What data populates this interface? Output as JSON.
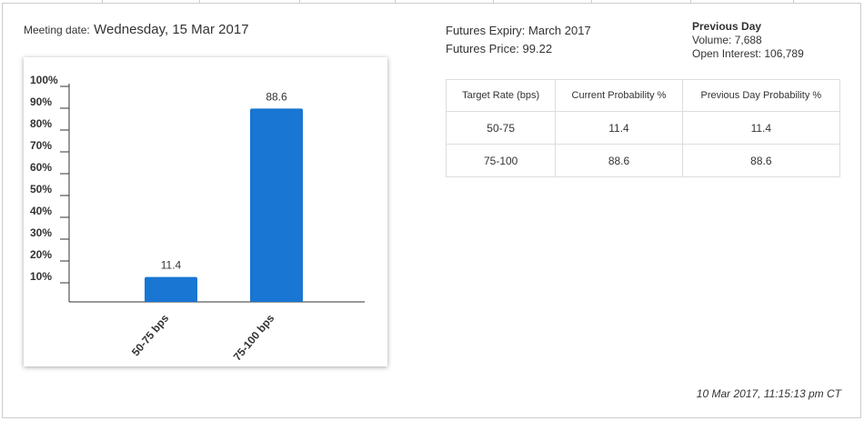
{
  "meeting": {
    "label": "Meeting date:",
    "date": "Wednesday, 15 Mar 2017"
  },
  "futures": {
    "expiry": "Futures Expiry: March 2017",
    "price": "Futures Price: 99.22"
  },
  "previous_day": {
    "title": "Previous Day",
    "volume": "Volume: 7,688",
    "open_interest": "Open Interest: 106,789"
  },
  "chart_data": {
    "type": "bar",
    "categories": [
      "50-75 bps",
      "75-100 bps"
    ],
    "values": [
      11.4,
      88.6
    ],
    "color": "#1976d2",
    "ylim": [
      0,
      100
    ],
    "yticks": [
      {
        "value": 10,
        "label": "10%"
      },
      {
        "value": 20,
        "label": "20%"
      },
      {
        "value": 30,
        "label": "30%"
      },
      {
        "value": 40,
        "label": "40%"
      },
      {
        "value": 50,
        "label": "50%"
      },
      {
        "value": 60,
        "label": "60%"
      },
      {
        "value": 70,
        "label": "70%"
      },
      {
        "value": 80,
        "label": "80%"
      },
      {
        "value": 90,
        "label": "90%"
      },
      {
        "value": 100,
        "label": "100%"
      }
    ]
  },
  "table": {
    "header": [
      "Target Rate (bps)",
      "Current Probability %",
      "Previous Day Probability %"
    ],
    "rows": [
      [
        "50-75",
        "11.4",
        "11.4"
      ],
      [
        "75-100",
        "88.6",
        "88.6"
      ]
    ]
  },
  "timestamp": "10 Mar 2017, 11:15:13 pm CT"
}
